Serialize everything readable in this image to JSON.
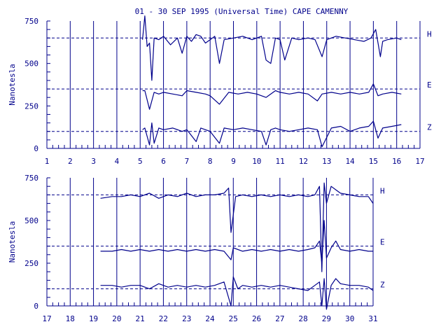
{
  "colors": {
    "ink": "#00008b",
    "background": "#ffffff"
  },
  "chart_data": {
    "type": "line",
    "title": "01 - 30 SEP 1995 (Universal Time) CAPE CAMENNY",
    "ylabel": "Nanotesla",
    "grid": true,
    "panels": [
      {
        "xlim": [
          1,
          17
        ],
        "xticks": [
          1,
          2,
          3,
          4,
          5,
          6,
          7,
          8,
          9,
          10,
          11,
          12,
          13,
          14,
          15,
          16,
          17
        ],
        "ylim": [
          0,
          750
        ],
        "yticks": [
          0,
          250,
          500,
          750
        ],
        "reference_lines": [
          {
            "label": "H",
            "value": 650
          },
          {
            "label": "E",
            "value": 350
          },
          {
            "label": "Z",
            "value": 100
          }
        ],
        "series": [
          {
            "name": "H",
            "x": [
              5.1,
              5.2,
              5.3,
              5.4,
              5.5,
              5.6,
              5.8,
              6.0,
              6.3,
              6.6,
              6.8,
              7.0,
              7.2,
              7.4,
              7.6,
              7.8,
              8.0,
              8.2,
              8.4,
              8.6,
              9.0,
              9.4,
              9.8,
              10.2,
              10.4,
              10.6,
              10.8,
              11.0,
              11.2,
              11.5,
              11.8,
              12.2,
              12.5,
              12.8,
              13.0,
              13.4,
              13.8,
              14.2,
              14.6,
              14.9,
              15.1,
              15.3,
              15.4,
              15.6,
              16.0,
              16.2
            ],
            "y": [
              640,
              780,
              600,
              620,
              400,
              650,
              640,
              660,
              610,
              650,
              560,
              660,
              630,
              670,
              660,
              620,
              640,
              660,
              500,
              640,
              650,
              660,
              640,
              660,
              520,
              500,
              650,
              640,
              520,
              650,
              640,
              650,
              640,
              540,
              640,
              660,
              650,
              640,
              630,
              650,
              700,
              540,
              630,
              640,
              650,
              640
            ]
          },
          {
            "name": "E",
            "x": [
              5.1,
              5.2,
              5.4,
              5.6,
              5.8,
              6.0,
              6.4,
              6.8,
              7.0,
              7.4,
              7.8,
              8.0,
              8.4,
              8.8,
              9.2,
              9.6,
              10.0,
              10.4,
              10.8,
              11.0,
              11.4,
              11.8,
              12.2,
              12.6,
              12.8,
              13.2,
              13.6,
              14.0,
              14.4,
              14.8,
              15.0,
              15.2,
              15.4,
              15.8,
              16.2
            ],
            "y": [
              340,
              340,
              230,
              330,
              320,
              330,
              320,
              310,
              340,
              330,
              320,
              310,
              260,
              330,
              320,
              330,
              320,
              300,
              340,
              330,
              320,
              330,
              320,
              280,
              320,
              330,
              320,
              330,
              320,
              330,
              380,
              310,
              320,
              330,
              320
            ]
          },
          {
            "name": "Z",
            "x": [
              5.1,
              5.2,
              5.4,
              5.5,
              5.6,
              5.8,
              6.0,
              6.4,
              6.8,
              7.0,
              7.4,
              7.6,
              7.8,
              8.0,
              8.4,
              8.6,
              9.0,
              9.4,
              9.8,
              10.2,
              10.4,
              10.6,
              10.8,
              11.0,
              11.4,
              11.8,
              12.2,
              12.6,
              12.8,
              13.2,
              13.6,
              14.0,
              14.4,
              14.8,
              15.0,
              15.2,
              15.4,
              15.8,
              16.2
            ],
            "y": [
              110,
              120,
              20,
              150,
              30,
              120,
              110,
              120,
              100,
              110,
              40,
              120,
              110,
              100,
              30,
              120,
              110,
              120,
              110,
              100,
              20,
              110,
              120,
              110,
              100,
              110,
              120,
              110,
              10,
              120,
              130,
              100,
              120,
              130,
              160,
              60,
              120,
              130,
              140
            ]
          }
        ]
      },
      {
        "xlim": [
          17,
          31
        ],
        "xticks": [
          17,
          18,
          19,
          20,
          21,
          22,
          23,
          24,
          25,
          26,
          27,
          28,
          29,
          30,
          31
        ],
        "ylim": [
          0,
          750
        ],
        "yticks": [
          0,
          250,
          500,
          750
        ],
        "reference_lines": [
          {
            "label": "H",
            "value": 650
          },
          {
            "label": "E",
            "value": 350
          },
          {
            "label": "Z",
            "value": 100
          }
        ],
        "series": [
          {
            "name": "H",
            "x": [
              19.3,
              19.8,
              20.2,
              20.6,
              21.0,
              21.4,
              21.8,
              22.2,
              22.6,
              23.0,
              23.4,
              23.8,
              24.2,
              24.6,
              24.8,
              24.9,
              25.1,
              25.4,
              25.8,
              26.2,
              26.6,
              27.0,
              27.4,
              27.8,
              28.2,
              28.5,
              28.7,
              28.8,
              28.9,
              29.0,
              29.2,
              29.4,
              29.6,
              30.0,
              30.4,
              30.8,
              31.0
            ],
            "y": [
              630,
              640,
              640,
              650,
              640,
              660,
              630,
              650,
              640,
              660,
              640,
              650,
              650,
              660,
              690,
              430,
              640,
              650,
              640,
              650,
              640,
              650,
              640,
              650,
              640,
              650,
              700,
              200,
              720,
              600,
              700,
              680,
              660,
              650,
              640,
              640,
              600
            ]
          },
          {
            "name": "E",
            "x": [
              19.3,
              19.8,
              20.2,
              20.6,
              21.0,
              21.4,
              21.8,
              22.2,
              22.6,
              23.0,
              23.4,
              23.8,
              24.2,
              24.6,
              24.9,
              25.0,
              25.4,
              25.8,
              26.2,
              26.6,
              27.0,
              27.4,
              27.8,
              28.2,
              28.5,
              28.7,
              28.8,
              28.9,
              29.0,
              29.2,
              29.4,
              29.6,
              30.0,
              30.4,
              30.8,
              31.0
            ],
            "y": [
              320,
              320,
              330,
              320,
              330,
              320,
              330,
              320,
              330,
              320,
              330,
              320,
              330,
              320,
              270,
              340,
              320,
              330,
              320,
              330,
              320,
              330,
              320,
              330,
              340,
              380,
              250,
              500,
              280,
              340,
              380,
              330,
              320,
              330,
              320,
              320
            ]
          },
          {
            "name": "Z",
            "x": [
              19.3,
              19.8,
              20.2,
              20.6,
              21.0,
              21.4,
              21.8,
              22.2,
              22.6,
              23.0,
              23.4,
              23.8,
              24.2,
              24.6,
              24.9,
              25.0,
              25.2,
              25.4,
              25.8,
              26.2,
              26.6,
              27.0,
              27.4,
              27.8,
              28.2,
              28.5,
              28.7,
              28.8,
              28.9,
              29.0,
              29.2,
              29.4,
              29.6,
              30.0,
              30.4,
              30.8,
              31.0
            ],
            "y": [
              120,
              120,
              110,
              120,
              120,
              100,
              130,
              110,
              120,
              110,
              120,
              110,
              120,
              140,
              0,
              170,
              100,
              120,
              110,
              120,
              110,
              120,
              110,
              100,
              90,
              120,
              140,
              0,
              160,
              -20,
              120,
              160,
              130,
              120,
              120,
              110,
              90
            ]
          }
        ]
      }
    ]
  }
}
